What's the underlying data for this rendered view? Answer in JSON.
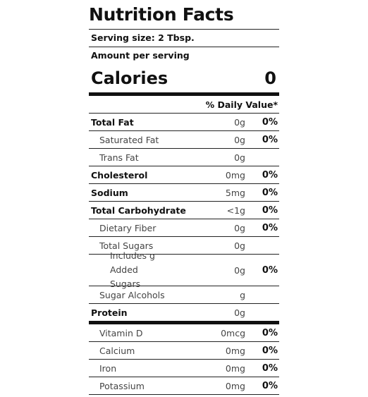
{
  "title": "Nutrition Facts",
  "serving_size": "Serving size: 2 Tbsp.",
  "amount_per_serving": "Amount per serving",
  "calories": {
    "label": "Calories",
    "value": "0"
  },
  "dv_header": "% Daily Value*",
  "nutrients": [
    {
      "name": "Total Fat",
      "amount": "0g",
      "dv": "0%"
    },
    {
      "name": "Saturated Fat",
      "amount": "0g",
      "dv": "0%"
    },
    {
      "name": "Trans Fat",
      "amount": "0g",
      "dv": ""
    },
    {
      "name": "Cholesterol",
      "amount": "0mg",
      "dv": "0%"
    },
    {
      "name": "Sodium",
      "amount": "5mg",
      "dv": "0%"
    },
    {
      "name": "Total Carbohydrate",
      "amount": "<1g",
      "dv": "0%"
    },
    {
      "name": "Dietary Fiber",
      "amount": "0g",
      "dv": "0%"
    },
    {
      "name": "Total Sugars",
      "amount": "0g",
      "dv": ""
    },
    {
      "name": "Includes g Added Sugars",
      "amount": "0g",
      "dv": "0%"
    },
    {
      "name": "Sugar Alcohols",
      "amount": "g",
      "dv": ""
    },
    {
      "name": "Protein",
      "amount": "0g",
      "dv": ""
    }
  ],
  "vitamins": [
    {
      "name": "Vitamin D",
      "amount": "0mcg",
      "dv": "0%"
    },
    {
      "name": "Calcium",
      "amount": "0mg",
      "dv": "0%"
    },
    {
      "name": "Iron",
      "amount": "0mg",
      "dv": "0%"
    },
    {
      "name": "Potassium",
      "amount": "0mg",
      "dv": "0%"
    }
  ]
}
